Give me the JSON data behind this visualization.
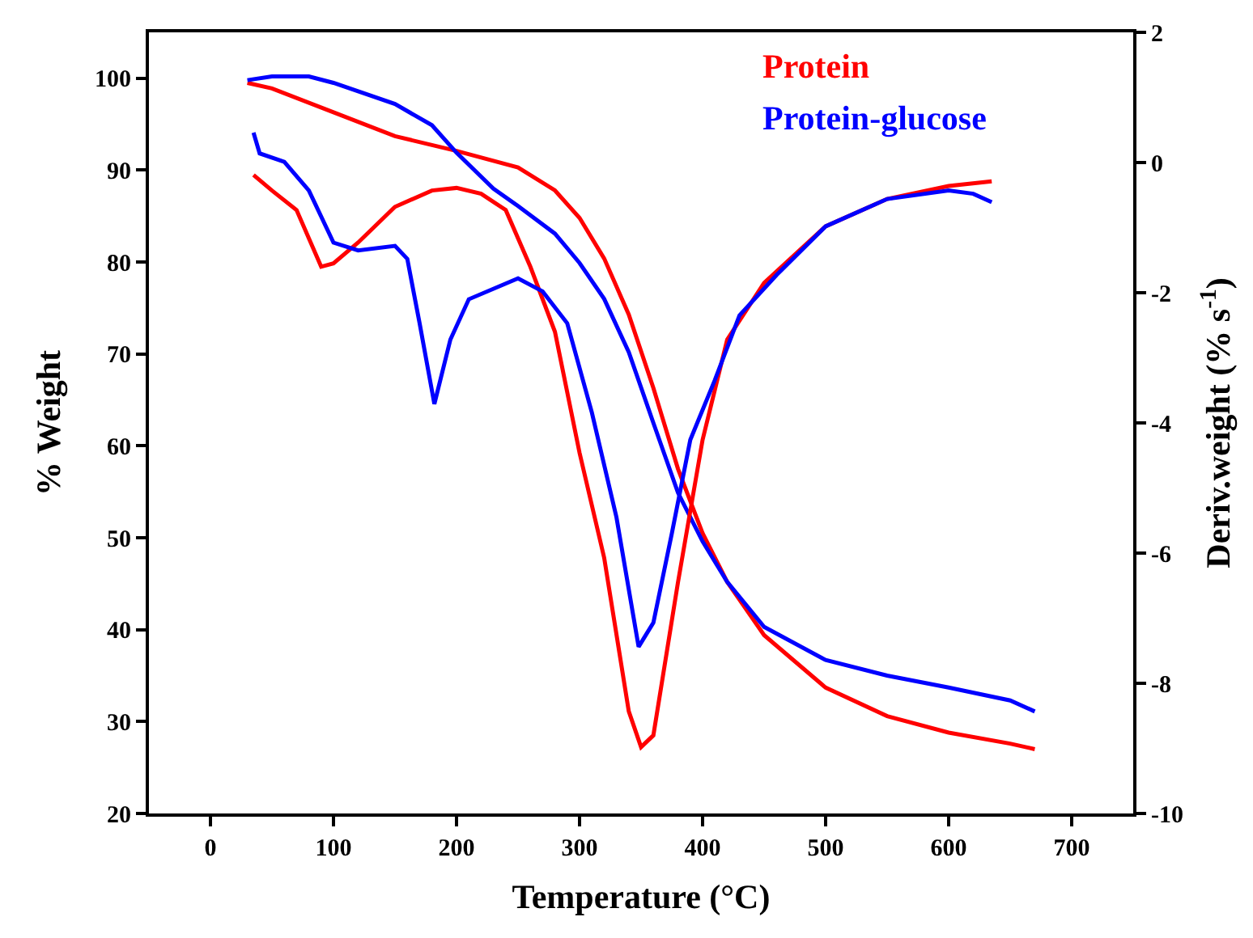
{
  "chart_data": {
    "type": "line",
    "xlabel": "Temperature (°C)",
    "ylabel": "% Weight",
    "y2label": "Deriv.weight (% s$^{-1}$)",
    "xlim": [
      -50,
      750
    ],
    "xticks": [
      0,
      100,
      200,
      300,
      400,
      500,
      600,
      700
    ],
    "ylim": [
      20,
      105
    ],
    "yticks": [
      20,
      30,
      40,
      50,
      60,
      70,
      80,
      90,
      100
    ],
    "y2lim": [
      -10,
      2
    ],
    "y2ticks": [
      -10,
      -8,
      -6,
      -4,
      -2,
      0,
      2
    ],
    "legend": "top right",
    "marker": "none",
    "line_style": "solid",
    "series": [
      {
        "name": "Protein",
        "color": "#ff0000",
        "x": [
          30,
          50,
          100,
          150,
          200,
          250,
          280,
          300,
          320,
          340,
          360,
          380,
          400,
          420,
          450,
          500,
          550,
          600,
          650,
          670
        ],
        "values": [
          99.5,
          98.9,
          96.3,
          93.7,
          92.1,
          90.3,
          87.8,
          84.8,
          80.4,
          74.3,
          66.3,
          57.5,
          50.5,
          45.2,
          39.4,
          33.7,
          30.6,
          28.8,
          27.6,
          27.0
        ]
      },
      {
        "name": "Protein-glucose",
        "color": "#0000ff",
        "x": [
          30,
          50,
          80,
          100,
          150,
          180,
          200,
          230,
          250,
          280,
          300,
          320,
          340,
          360,
          380,
          400,
          420,
          450,
          500,
          550,
          600,
          650,
          670
        ],
        "values": [
          99.8,
          100.2,
          100.2,
          99.5,
          97.2,
          94.9,
          91.9,
          88.0,
          86.1,
          83.1,
          79.9,
          76.0,
          70.2,
          62.5,
          54.9,
          49.6,
          45.2,
          40.3,
          36.7,
          35.0,
          33.7,
          32.3,
          31.1
        ]
      },
      {
        "color": "#ff0000",
        "axis": "y2",
        "x": [
          35,
          50,
          70,
          90,
          100,
          120,
          150,
          180,
          200,
          220,
          240,
          260,
          280,
          300,
          320,
          340,
          350,
          360,
          380,
          400,
          420,
          450,
          500,
          550,
          600,
          635
        ],
        "values": [
          -0.19,
          -0.43,
          -0.73,
          -1.6,
          -1.55,
          -1.23,
          -0.68,
          -0.43,
          -0.39,
          -0.48,
          -0.73,
          -1.6,
          -2.6,
          -4.46,
          -6.07,
          -8.43,
          -8.98,
          -8.8,
          -6.45,
          -4.26,
          -2.72,
          -1.85,
          -0.98,
          -0.56,
          -0.36,
          -0.29
        ]
      },
      {
        "color": "#0000ff",
        "axis": "y2",
        "x": [
          35,
          40,
          60,
          80,
          100,
          120,
          150,
          160,
          170,
          182,
          195,
          210,
          250,
          270,
          290,
          310,
          330,
          348,
          360,
          375,
          390,
          410,
          430,
          460,
          500,
          550,
          600,
          620,
          635
        ],
        "values": [
          0.46,
          0.14,
          0.01,
          -0.43,
          -1.23,
          -1.35,
          -1.28,
          -1.48,
          -2.47,
          -3.71,
          -2.72,
          -2.1,
          -1.78,
          -1.98,
          -2.47,
          -3.84,
          -5.45,
          -7.44,
          -7.07,
          -5.7,
          -4.26,
          -3.34,
          -2.35,
          -1.73,
          -0.98,
          -0.56,
          -0.43,
          -0.48,
          -0.61
        ]
      }
    ]
  }
}
